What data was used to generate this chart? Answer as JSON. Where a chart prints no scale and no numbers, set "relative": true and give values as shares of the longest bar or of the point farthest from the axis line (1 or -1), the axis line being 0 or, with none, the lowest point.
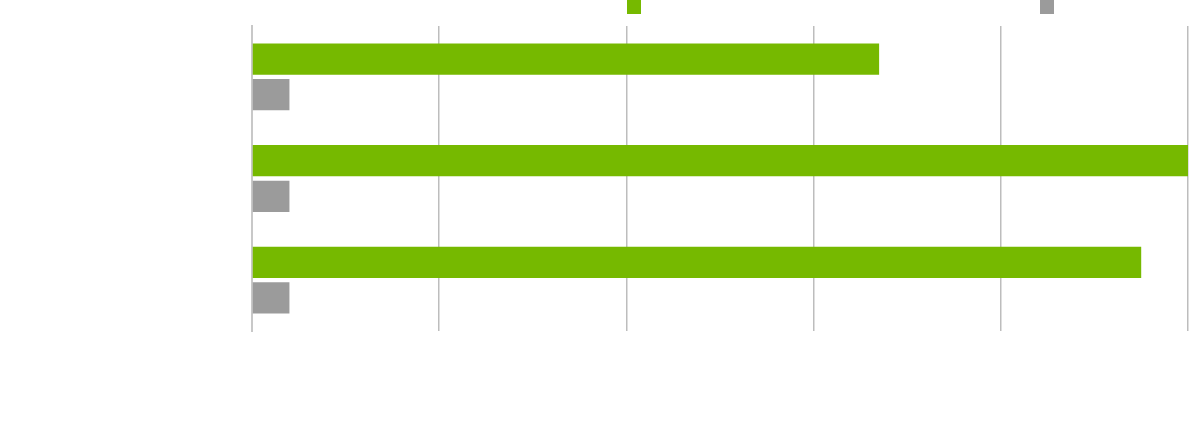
{
  "chart_data": {
    "type": "bar",
    "orientation": "horizontal",
    "relative": true,
    "categories": [
      null,
      null,
      null
    ],
    "series": [
      {
        "color": "#76b900",
        "values": [
          0.67,
          1,
          0.95
        ]
      },
      {
        "color": "#9b9b9b",
        "values": [
          0.04,
          0.04,
          0.04
        ]
      }
    ],
    "grid": "x"
  }
}
